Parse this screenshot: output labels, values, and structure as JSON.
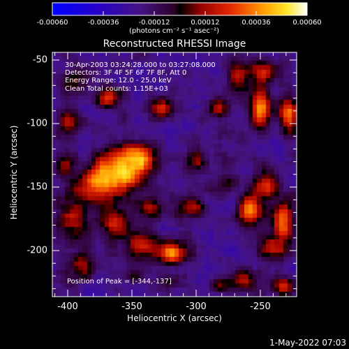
{
  "colorbar": {
    "ticks": [
      "-0.00060",
      "-0.00036",
      "-0.00012",
      "0.00012",
      "0.00036",
      "0.00060"
    ],
    "units": "(photons cm⁻² s⁻¹ asec⁻²)",
    "range": [
      -0.0006,
      0.0006
    ]
  },
  "title": "Reconstructed RHESSI Image",
  "info": {
    "time": "30-Apr-2003 03:24:28.000 to 03:27:08.000",
    "detectors": "Detectors: 3F 4F 5F 6F 7F 8F, Att 0",
    "energy": "Energy Range: 12.0 - 25.0 keV",
    "clean": "Clean     Total counts: 1.15E+03"
  },
  "peak_label": "Position of Peak = [-344,-137]",
  "axes": {
    "xlabel": "Heliocentric X (arcsec)",
    "ylabel": "Heliocentric Y (arcsec)",
    "xticks": [
      "-400",
      "-350",
      "-300",
      "-250"
    ],
    "yticks": [
      "-50",
      "-100",
      "-150",
      "-200"
    ],
    "xlim": [
      -412,
      -222
    ],
    "ylim": [
      -238,
      -45
    ]
  },
  "footer_date": "1-May-2022 07:03",
  "chart_data": {
    "type": "heatmap",
    "title": "Reconstructed RHESSI Image",
    "xlabel": "Heliocentric X (arcsec)",
    "ylabel": "Heliocentric Y (arcsec)",
    "xlim": [
      -412,
      -222
    ],
    "ylim": [
      -238,
      -45
    ],
    "blobs": [
      {
        "x": -358,
        "y": -138,
        "amp": 1.0,
        "sx": 12,
        "sy": 12
      },
      {
        "x": -378,
        "y": -150,
        "amp": 0.8,
        "sx": 10,
        "sy": 10
      },
      {
        "x": -342,
        "y": -128,
        "amp": 0.6,
        "sx": 8,
        "sy": 8
      },
      {
        "x": -318,
        "y": -203,
        "amp": 0.8,
        "sx": 8,
        "sy": 6
      },
      {
        "x": -344,
        "y": -198,
        "amp": 0.55,
        "sx": 8,
        "sy": 8
      },
      {
        "x": -362,
        "y": -181,
        "amp": 0.6,
        "sx": 8,
        "sy": 8
      },
      {
        "x": -396,
        "y": -178,
        "amp": 0.55,
        "sx": 9,
        "sy": 12
      },
      {
        "x": -390,
        "y": -215,
        "amp": 0.4,
        "sx": 10,
        "sy": 8
      },
      {
        "x": -305,
        "y": -168,
        "amp": 0.5,
        "sx": 8,
        "sy": 6
      },
      {
        "x": -335,
        "y": -168,
        "amp": 0.45,
        "sx": 7,
        "sy": 6
      },
      {
        "x": -258,
        "y": -170,
        "amp": 0.8,
        "sx": 7,
        "sy": 8
      },
      {
        "x": -245,
        "y": -150,
        "amp": 0.6,
        "sx": 8,
        "sy": 8
      },
      {
        "x": -232,
        "y": -180,
        "amp": 0.8,
        "sx": 6,
        "sy": 10
      },
      {
        "x": -240,
        "y": -200,
        "amp": 0.55,
        "sx": 8,
        "sy": 6
      },
      {
        "x": -250,
        "y": -90,
        "amp": 0.8,
        "sx": 6,
        "sy": 12
      },
      {
        "x": -228,
        "y": -95,
        "amp": 0.8,
        "sx": 5,
        "sy": 10
      },
      {
        "x": -268,
        "y": -65,
        "amp": 0.55,
        "sx": 6,
        "sy": 8
      },
      {
        "x": -248,
        "y": -60,
        "amp": 0.5,
        "sx": 8,
        "sy": 6
      },
      {
        "x": -262,
        "y": -225,
        "amp": 0.5,
        "sx": 8,
        "sy": 6
      },
      {
        "x": -232,
        "y": -230,
        "amp": 0.5,
        "sx": 6,
        "sy": 5
      },
      {
        "x": -368,
        "y": -80,
        "amp": 0.65,
        "sx": 6,
        "sy": 6
      },
      {
        "x": -328,
        "y": -90,
        "amp": 0.55,
        "sx": 6,
        "sy": 6
      },
      {
        "x": -395,
        "y": -70,
        "amp": 0.4,
        "sx": 6,
        "sy": 8
      },
      {
        "x": -400,
        "y": -100,
        "amp": 0.45,
        "sx": 5,
        "sy": 8
      },
      {
        "x": -282,
        "y": -90,
        "amp": 0.45,
        "sx": 6,
        "sy": 6
      },
      {
        "x": -300,
        "y": -130,
        "amp": 0.45,
        "sx": 6,
        "sy": 6
      },
      {
        "x": -282,
        "y": -230,
        "amp": 0.35,
        "sx": 6,
        "sy": 4
      },
      {
        "x": -320,
        "y": -225,
        "amp": 0.3,
        "sx": 6,
        "sy": 5
      },
      {
        "x": -350,
        "y": -222,
        "amp": 0.25,
        "sx": 6,
        "sy": 4
      },
      {
        "x": -403,
        "y": -133,
        "amp": 0.45,
        "sx": 5,
        "sy": 8
      },
      {
        "x": -275,
        "y": -148,
        "amp": 0.3,
        "sx": 6,
        "sy": 6
      }
    ]
  }
}
